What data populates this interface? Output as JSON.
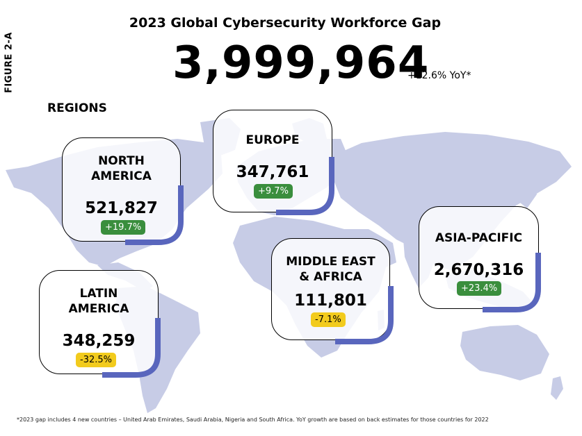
{
  "figure_label": "FIGURE 2-A",
  "title": "2023 Global Cybersecurity Workforce Gap",
  "total": "3,999,964",
  "total_yoy": "+12.6% YoY*",
  "regions_label": "REGIONS",
  "regions": [
    {
      "name": "NORTH AMERICA",
      "value": "521,827",
      "change": "+19.7%",
      "trend": "up"
    },
    {
      "name": "EUROPE",
      "value": "347,761",
      "change": "+9.7%",
      "trend": "up"
    },
    {
      "name": "LATIN AMERICA",
      "value": "348,259",
      "change": "-32.5%",
      "trend": "down"
    },
    {
      "name": "MIDDLE EAST & AFRICA",
      "value": "111,801",
      "change": "-7.1%",
      "trend": "down"
    },
    {
      "name": "ASIA-PACIFIC",
      "value": "2,670,316",
      "change": "+23.4%",
      "trend": "up"
    }
  ],
  "footnote": "*2023 gap includes 4 new countries – United Arab Emirates, Saudi Arabia, Nigeria and South Africa. YoY growth are based on back estimates for those countries for 2022",
  "colors": {
    "map": "#c7cce6",
    "accent": "#5966bd",
    "positive": "#3a8e3d",
    "negative": "#f2cb1d"
  }
}
